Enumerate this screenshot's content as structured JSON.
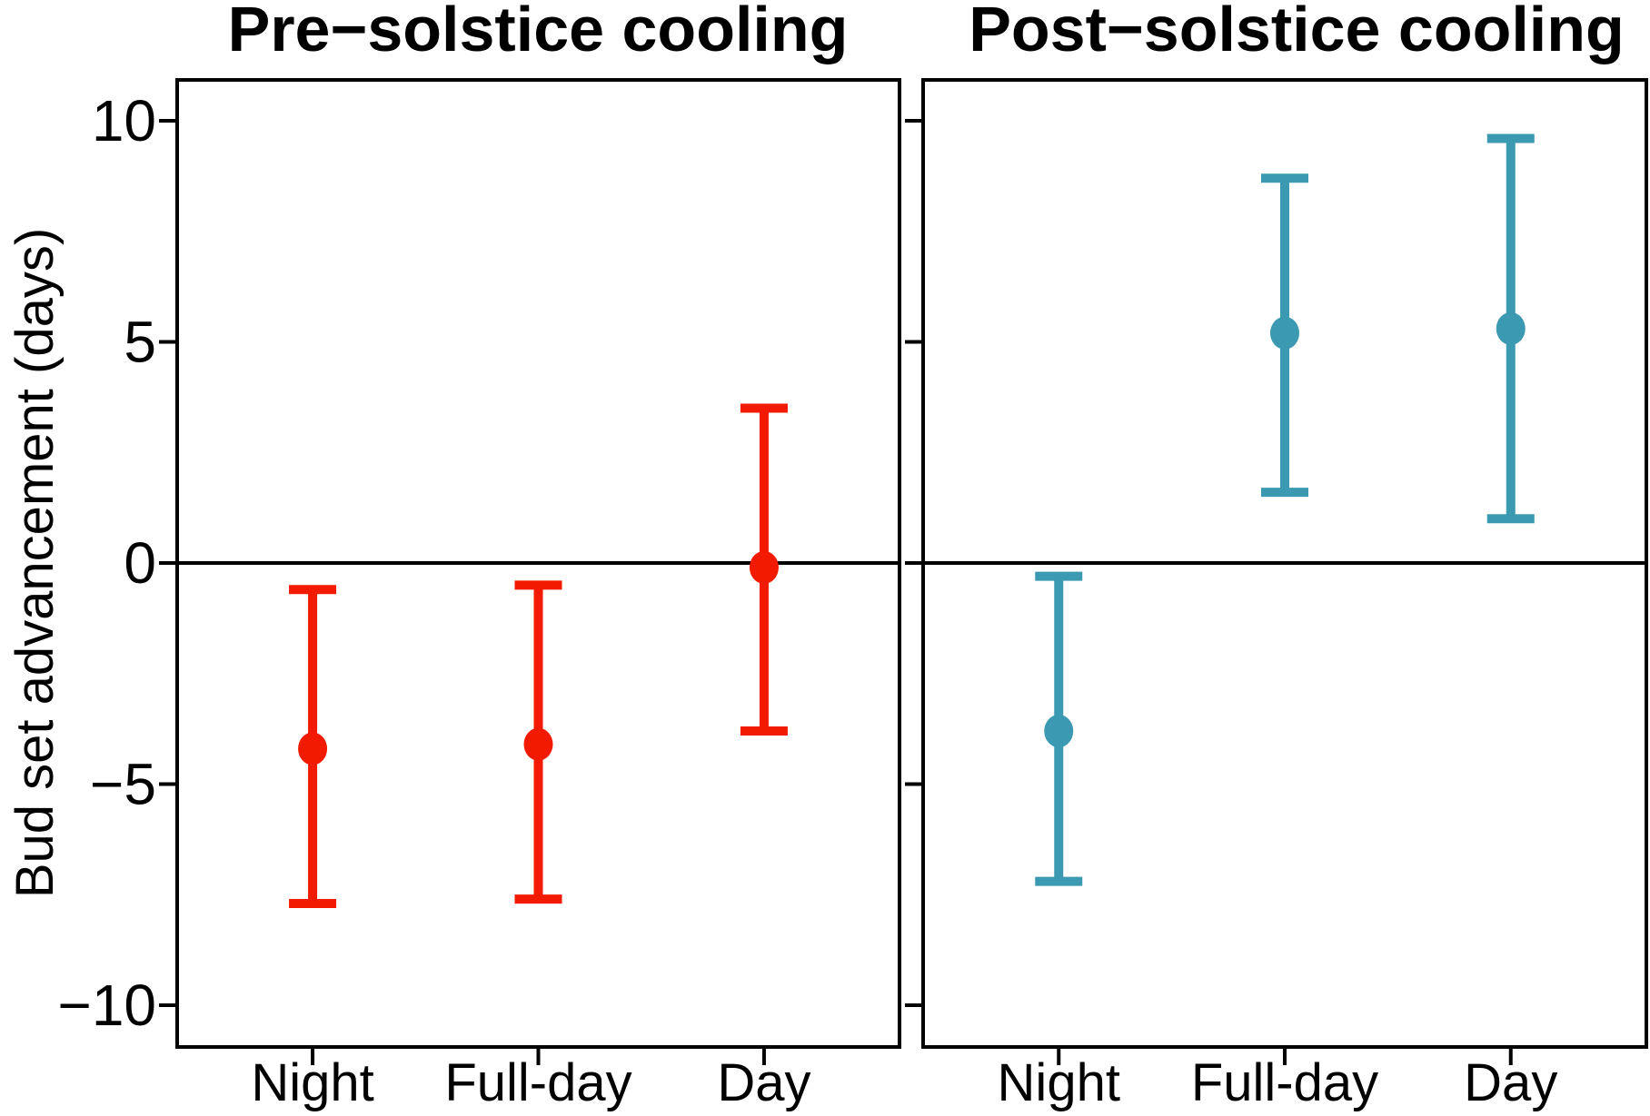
{
  "figure": {
    "background": "#ffffff",
    "y_axis_label": "Bud set advancement (days)"
  },
  "chart_data": {
    "type": "scatter",
    "subtype": "point-range (mean with confidence interval error bars), 2 facet panels",
    "categories": [
      "Night",
      "Full-day",
      "Day"
    ],
    "ylabel": "Bud set advancement (days)",
    "ylim": [
      -10.9,
      10.9
    ],
    "yticks": [
      10,
      5,
      0,
      -5,
      -10
    ],
    "ytick_labels": [
      "10",
      "5",
      "0",
      "−5",
      "−10"
    ],
    "reference_line_y": 0,
    "grid": "off",
    "legend": "none",
    "axis_color": "#000000",
    "panels": [
      {
        "title": "Pre−solstice cooling",
        "color": "#F21A00",
        "series": [
          {
            "category": "Night",
            "mean": -4.2,
            "ci_low": -7.7,
            "ci_high": -0.6
          },
          {
            "category": "Full-day",
            "mean": -4.1,
            "ci_low": -7.6,
            "ci_high": -0.5
          },
          {
            "category": "Day",
            "mean": -0.1,
            "ci_low": -3.8,
            "ci_high": 3.5
          }
        ]
      },
      {
        "title": "Post−solstice cooling",
        "color": "#3B9AB2",
        "series": [
          {
            "category": "Night",
            "mean": -3.8,
            "ci_low": -7.2,
            "ci_high": -0.3
          },
          {
            "category": "Full-day",
            "mean": 5.2,
            "ci_low": 1.6,
            "ci_high": 8.7
          },
          {
            "category": "Day",
            "mean": 5.3,
            "ci_low": 1.0,
            "ci_high": 9.6
          }
        ]
      }
    ]
  }
}
